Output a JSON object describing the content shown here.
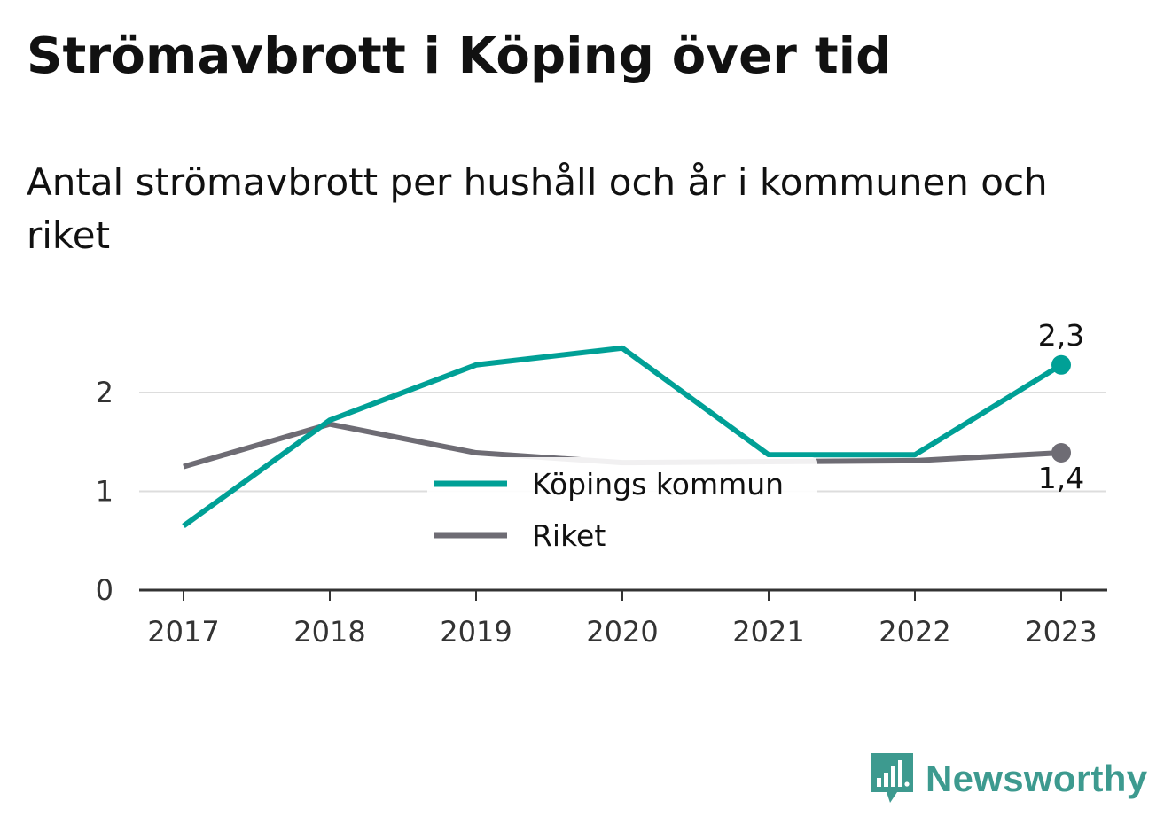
{
  "header": {
    "title": "Strömavbrott i Köping över tid",
    "subtitle": "Antal strömavbrott per hushåll och år i kommunen och riket"
  },
  "brand": {
    "name": "Newsworthy",
    "color": "#3d9a8f",
    "icon": "bar-chart-speech-bubble-icon"
  },
  "chart_data": {
    "type": "line",
    "x": [
      "2017",
      "2018",
      "2019",
      "2020",
      "2021",
      "2022",
      "2023"
    ],
    "ylim": [
      0,
      2.5
    ],
    "yticks": [
      0,
      1,
      2
    ],
    "grid": true,
    "legend_position": "center",
    "series": [
      {
        "name": "Köpings kommun",
        "color": "#00a096",
        "values": [
          0.65,
          1.72,
          2.28,
          2.45,
          1.37,
          1.37,
          2.28
        ],
        "end_label": "2,3"
      },
      {
        "name": "Riket",
        "color": "#6e6c74",
        "values": [
          1.25,
          1.68,
          1.39,
          1.29,
          1.3,
          1.31,
          1.39
        ],
        "end_label": "1,4"
      }
    ]
  }
}
